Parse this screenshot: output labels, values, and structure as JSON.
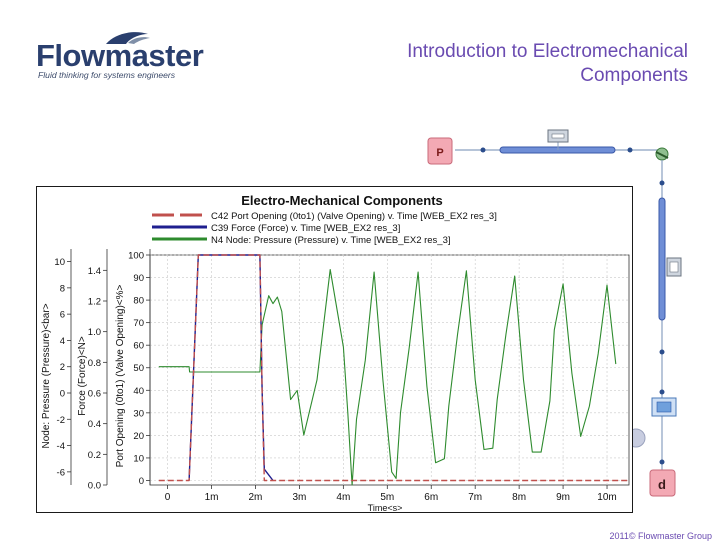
{
  "brand": {
    "name": "Flowmaster",
    "tagline": "Fluid thinking for systems engineers",
    "color": "#2a3f6e",
    "accent": "#1c5b9a"
  },
  "slide": {
    "title_line1": "Introduction to Electromechanical",
    "title_line2": "Components",
    "title_color": "#6a4bb1",
    "footer": "2011© Flowmaster Group",
    "footer_color": "#6a4bb1"
  },
  "schematic": {
    "pressure_source_label": "P",
    "demand_label": "d"
  },
  "chart_data": {
    "type": "line",
    "title": "Electro-Mechanical Components",
    "xlabel": "Time<s>",
    "x_ticks": [
      "0",
      "1m",
      "2m",
      "3m",
      "4m",
      "5m",
      "6m",
      "7m",
      "8m",
      "9m",
      "10m"
    ],
    "xlim": [
      -0.0004,
      0.0105
    ],
    "axes": [
      {
        "label": "Node: Pressure (Pressure)<bar>",
        "ticks": [
          "-6",
          "-4",
          "-2",
          "0",
          "2",
          "4",
          "6",
          "8",
          "10"
        ],
        "ylim": [
          -7,
          10.5
        ]
      },
      {
        "label": "Force (Force)<N>",
        "ticks": [
          "0.0",
          "0.2",
          "0.4",
          "0.6",
          "0.8",
          "1.0",
          "1.2",
          "1.4"
        ],
        "ylim": [
          0,
          1.5
        ]
      },
      {
        "label": "Port Opening (0to1) (Valve Opening)<%>",
        "ticks": [
          "0",
          "10",
          "20",
          "30",
          "40",
          "50",
          "60",
          "70",
          "80",
          "90",
          "100"
        ],
        "ylim": [
          -2,
          100
        ]
      }
    ],
    "legend_position": "top",
    "grid": true,
    "series": [
      {
        "name": "C42 Port Opening (0to1) (Valve Opening) v. Time [WEB_EX2 res_3]",
        "color": "#c0504d",
        "style": "dashed",
        "axis": 2,
        "x": [
          -0.0002,
          0.00049,
          0.0007,
          0.0021,
          0.00215,
          0.0022,
          0.0105
        ],
        "y": [
          0,
          0,
          100,
          100,
          40,
          0,
          0
        ]
      },
      {
        "name": "C39 Force (Force) v. Time [WEB_EX2 res_3]",
        "color": "#1f1f8f",
        "style": "solid",
        "axis": 2,
        "x": [
          0.00049,
          0.0007,
          0.0021,
          0.00215,
          0.0022,
          0.0024
        ],
        "y": [
          0,
          100,
          100,
          40,
          5,
          0
        ]
      },
      {
        "name": "N4 Node: Pressure (Pressure) v. Time [WEB_EX2 res_3]",
        "color": "#2e8b2e",
        "style": "solid",
        "axis": 0,
        "x": [
          -0.0002,
          0.00049,
          0.0005,
          0.0021,
          0.00215,
          0.0023,
          0.0024,
          0.0025,
          0.0026,
          0.0028,
          0.00295,
          0.0031,
          0.0034,
          0.0037,
          0.004,
          0.0041,
          0.0042,
          0.0043,
          0.0045,
          0.0047,
          0.0049,
          0.0051,
          0.0052,
          0.0053,
          0.0055,
          0.0057,
          0.0059,
          0.0061,
          0.0063,
          0.0064,
          0.0066,
          0.0068,
          0.007,
          0.0072,
          0.0074,
          0.0075,
          0.0077,
          0.0079,
          0.0081,
          0.0083,
          0.0085,
          0.0087,
          0.0088,
          0.009,
          0.0092,
          0.0094,
          0.0096,
          0.0098,
          0.01,
          0.0102
        ],
        "y": [
          2,
          2,
          1.6,
          1.6,
          5.2,
          7.4,
          6.8,
          7.3,
          6.2,
          -0.5,
          0.2,
          -3.2,
          1,
          9.4,
          3.5,
          -1.5,
          -7,
          -2,
          2.5,
          9.2,
          1,
          -6,
          -6.5,
          -1.5,
          3.5,
          9.2,
          0.5,
          -5.3,
          -5,
          -1,
          4.5,
          9.3,
          1,
          -4.3,
          -4.2,
          -0.5,
          4.5,
          8.9,
          1,
          -4.5,
          -4.5,
          -0.6,
          4.8,
          8.3,
          1.5,
          -3.3,
          -1,
          3,
          8.2,
          2.2
        ]
      }
    ]
  }
}
